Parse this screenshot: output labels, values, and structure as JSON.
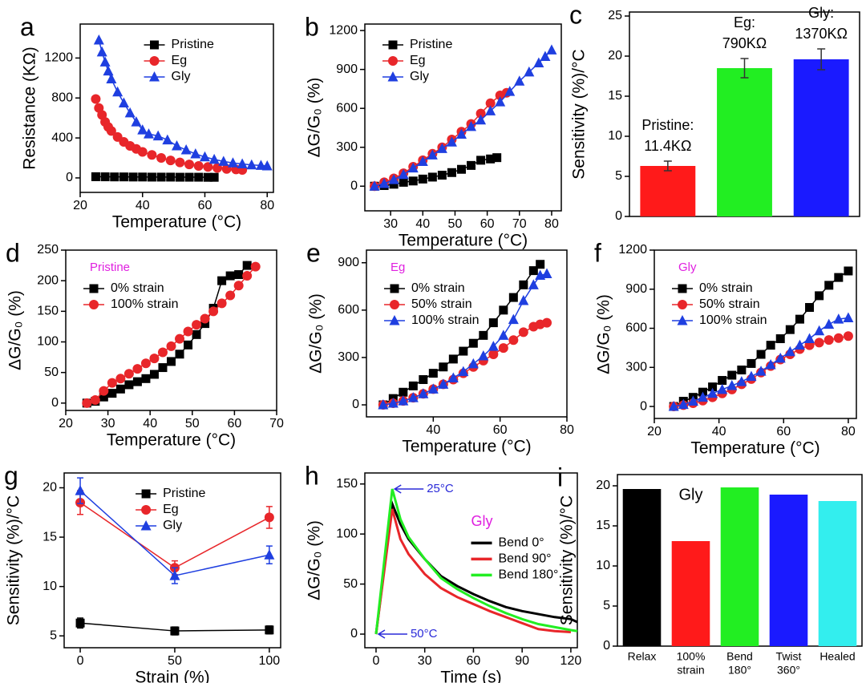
{
  "chart_data": [
    {
      "panel": "a",
      "type": "line",
      "x_label": "Temperature (°C)",
      "y_label": "Resistance (KΩ)",
      "xlim": [
        20,
        82
      ],
      "xticks": [
        20,
        40,
        60,
        80
      ],
      "ylim": [
        -145,
        1540
      ],
      "yticks": [
        0,
        400,
        800,
        1200
      ],
      "legend": "upper center",
      "series": [
        {
          "name": "Pristine",
          "color": "#000000",
          "marker": "square",
          "x": [
            25,
            28,
            31,
            34,
            37,
            40,
            43,
            46,
            49,
            52,
            55,
            58,
            61,
            63
          ],
          "values": [
            12,
            11,
            10,
            10,
            9,
            9,
            8,
            8,
            8,
            7,
            7,
            7,
            6,
            6
          ]
        },
        {
          "name": "Eg",
          "color": "#e8262a",
          "marker": "circle",
          "x": [
            25,
            26,
            27,
            28,
            29,
            30,
            32,
            34,
            36,
            38,
            40,
            43,
            46,
            49,
            52,
            55,
            58,
            61,
            64,
            67,
            70,
            72
          ],
          "values": [
            790,
            700,
            630,
            560,
            510,
            470,
            410,
            360,
            320,
            290,
            260,
            230,
            200,
            175,
            155,
            135,
            120,
            110,
            100,
            90,
            85,
            80
          ]
        },
        {
          "name": "Gly",
          "color": "#1f3fe0",
          "marker": "triangle",
          "x": [
            26,
            27,
            28,
            29,
            30,
            32,
            34,
            36,
            38,
            40,
            42,
            45,
            48,
            51,
            54,
            57,
            60,
            63,
            66,
            69,
            72,
            75,
            78,
            80
          ],
          "values": [
            1380,
            1260,
            1160,
            1070,
            990,
            860,
            750,
            650,
            560,
            480,
            440,
            420,
            380,
            320,
            280,
            240,
            210,
            185,
            165,
            150,
            140,
            130,
            125,
            120
          ]
        }
      ]
    },
    {
      "panel": "b",
      "type": "line",
      "x_label": "Temperature (°C)",
      "y_label": "ΔG/G₀ (%)",
      "xlim": [
        22,
        83
      ],
      "xticks": [
        30,
        40,
        50,
        60,
        70,
        80
      ],
      "ylim": [
        -190,
        1250
      ],
      "yticks": [
        0,
        300,
        600,
        900,
        1200
      ],
      "legend": "upper left",
      "series": [
        {
          "name": "Pristine",
          "color": "#000000",
          "marker": "square",
          "x": [
            25,
            28,
            31,
            34,
            37,
            40,
            43,
            46,
            49,
            52,
            55,
            58,
            61,
            63
          ],
          "values": [
            0,
            5,
            15,
            30,
            40,
            55,
            70,
            85,
            105,
            130,
            160,
            200,
            210,
            220
          ]
        },
        {
          "name": "Eg",
          "color": "#e8262a",
          "marker": "circle",
          "x": [
            25,
            28,
            31,
            34,
            37,
            40,
            43,
            46,
            49,
            52,
            55,
            58,
            61,
            64,
            66
          ],
          "values": [
            0,
            30,
            60,
            100,
            150,
            200,
            250,
            300,
            360,
            420,
            480,
            560,
            640,
            700,
            720
          ]
        },
        {
          "name": "Gly",
          "color": "#1f3fe0",
          "marker": "triangle",
          "x": [
            25,
            28,
            31,
            34,
            37,
            40,
            43,
            46,
            49,
            52,
            55,
            58,
            61,
            64,
            67,
            70,
            73,
            76,
            78,
            80
          ],
          "values": [
            0,
            20,
            50,
            90,
            140,
            190,
            240,
            290,
            340,
            400,
            460,
            510,
            580,
            650,
            730,
            810,
            880,
            950,
            1000,
            1050
          ]
        }
      ]
    },
    {
      "panel": "c",
      "type": "bar",
      "y_label": "Sensitivity (%)/°C",
      "ylim": [
        0,
        25.5
      ],
      "yticks": [
        0,
        5,
        10,
        15,
        20,
        25
      ],
      "values": [
        6.3,
        18.5,
        19.6
      ],
      "errors": [
        0.6,
        1.2,
        1.3
      ],
      "colors": [
        "#ff1a1a",
        "#22ee22",
        "#1a1aff"
      ],
      "bar_labels": [
        [
          "Pristine:",
          "11.4KΩ"
        ],
        [
          "Eg:",
          "790KΩ"
        ],
        [
          "Gly:",
          "1370KΩ"
        ]
      ]
    },
    {
      "panel": "d",
      "type": "line",
      "x_label": "Temperature (°C)",
      "y_label": "ΔG/G₀ (%)",
      "annotation": "Pristine",
      "annotation_color": "#e020e0",
      "xlim": [
        20,
        70
      ],
      "xticks": [
        20,
        30,
        40,
        50,
        60,
        70
      ],
      "ylim": [
        -12,
        250
      ],
      "yticks": [
        0,
        50,
        100,
        150,
        200,
        250
      ],
      "legend": "upper left",
      "series": [
        {
          "name": "0% strain",
          "color": "#000000",
          "marker": "square",
          "x": [
            25,
            27,
            29,
            31,
            33,
            35,
            37,
            39,
            41,
            43,
            45,
            47,
            49,
            51,
            53,
            55,
            57,
            59,
            61,
            63
          ],
          "values": [
            0,
            3,
            10,
            16,
            23,
            30,
            35,
            40,
            47,
            58,
            68,
            80,
            95,
            112,
            130,
            155,
            200,
            208,
            210,
            225
          ]
        },
        {
          "name": "100% strain",
          "color": "#e8262a",
          "marker": "circle",
          "x": [
            25,
            27,
            29,
            31,
            33,
            35,
            37,
            39,
            41,
            43,
            45,
            47,
            49,
            51,
            53,
            55,
            57,
            59,
            61,
            63,
            65
          ],
          "values": [
            0,
            5,
            20,
            33,
            40,
            48,
            56,
            65,
            73,
            83,
            93,
            105,
            117,
            128,
            138,
            150,
            163,
            176,
            192,
            208,
            223
          ]
        }
      ]
    },
    {
      "panel": "e",
      "type": "line",
      "x_label": "Temperature (°C)",
      "y_label": "ΔG/G₀ (%)",
      "annotation": "Eg",
      "annotation_color": "#e020e0",
      "xlim": [
        20,
        80
      ],
      "xticks": [
        40,
        60,
        80
      ],
      "ylim": [
        -76,
        980
      ],
      "yticks": [
        0,
        300,
        600,
        900
      ],
      "legend": "upper left",
      "series": [
        {
          "name": "0% strain",
          "color": "#000000",
          "marker": "square",
          "x": [
            25,
            28,
            31,
            34,
            37,
            40,
            43,
            46,
            49,
            52,
            55,
            58,
            61,
            64,
            67,
            70,
            72
          ],
          "values": [
            0,
            40,
            80,
            120,
            160,
            200,
            240,
            290,
            340,
            390,
            440,
            520,
            600,
            680,
            760,
            850,
            890
          ]
        },
        {
          "name": "50% strain",
          "color": "#e8262a",
          "marker": "circle",
          "x": [
            25,
            28,
            31,
            34,
            37,
            40,
            43,
            46,
            49,
            52,
            55,
            58,
            61,
            64,
            67,
            70,
            72,
            74
          ],
          "values": [
            0,
            10,
            25,
            45,
            70,
            100,
            130,
            160,
            200,
            240,
            280,
            320,
            360,
            410,
            460,
            495,
            510,
            520
          ]
        },
        {
          "name": "100% strain",
          "color": "#1f3fe0",
          "marker": "triangle",
          "x": [
            25,
            28,
            31,
            34,
            37,
            40,
            43,
            46,
            49,
            52,
            55,
            58,
            61,
            64,
            67,
            70,
            72,
            74
          ],
          "values": [
            0,
            10,
            25,
            45,
            70,
            100,
            130,
            170,
            210,
            260,
            310,
            370,
            440,
            540,
            660,
            760,
            820,
            830
          ]
        }
      ]
    },
    {
      "panel": "f",
      "type": "line",
      "x_label": "Temperature (°C)",
      "y_label": "ΔG/G₀ (%)",
      "annotation": "Gly",
      "annotation_color": "#e020e0",
      "xlim": [
        20,
        82.5
      ],
      "xticks": [
        20,
        40,
        60,
        80
      ],
      "ylim": [
        -92,
        1200
      ],
      "yticks": [
        0,
        300,
        600,
        900,
        1200
      ],
      "legend": "upper left",
      "series": [
        {
          "name": "0% strain",
          "color": "#000000",
          "marker": "square",
          "x": [
            26,
            29,
            32,
            35,
            38,
            41,
            44,
            47,
            50,
            53,
            56,
            59,
            62,
            65,
            68,
            71,
            74,
            77,
            80
          ],
          "values": [
            0,
            40,
            70,
            110,
            150,
            200,
            240,
            280,
            330,
            400,
            470,
            520,
            590,
            670,
            760,
            850,
            930,
            990,
            1040
          ]
        },
        {
          "name": "50% strain",
          "color": "#e8262a",
          "marker": "circle",
          "x": [
            26,
            29,
            32,
            35,
            38,
            41,
            44,
            47,
            50,
            53,
            56,
            59,
            62,
            65,
            68,
            71,
            74,
            77,
            80
          ],
          "values": [
            0,
            10,
            25,
            45,
            70,
            100,
            130,
            170,
            210,
            260,
            310,
            360,
            400,
            440,
            470,
            490,
            510,
            525,
            540
          ]
        },
        {
          "name": "100% strain",
          "color": "#1f3fe0",
          "marker": "triangle",
          "x": [
            26,
            29,
            32,
            35,
            38,
            41,
            44,
            47,
            50,
            53,
            56,
            59,
            62,
            65,
            68,
            71,
            74,
            77,
            80
          ],
          "values": [
            0,
            15,
            40,
            70,
            100,
            130,
            160,
            190,
            230,
            270,
            320,
            370,
            420,
            470,
            520,
            580,
            630,
            670,
            680
          ]
        }
      ]
    },
    {
      "panel": "g",
      "type": "line",
      "x_label": "Strain (%)",
      "y_label": "Sensitivity (%)/°C",
      "xlim": [
        -8.5,
        106
      ],
      "xticks": [
        0,
        50,
        100
      ],
      "ylim": [
        3.8,
        21.5
      ],
      "yticks": [
        5,
        10,
        15,
        20
      ],
      "legend": "upper center",
      "series": [
        {
          "name": "Pristine",
          "color": "#000000",
          "marker": "square",
          "x": [
            0,
            50,
            100
          ],
          "values": [
            6.3,
            5.5,
            5.6
          ],
          "errors": [
            0.5,
            0.4,
            0.4
          ]
        },
        {
          "name": "Eg",
          "color": "#e8262a",
          "marker": "circle",
          "x": [
            0,
            50,
            100
          ],
          "values": [
            18.5,
            11.9,
            17.0
          ],
          "errors": [
            1.2,
            0.7,
            1.1
          ]
        },
        {
          "name": "Gly",
          "color": "#1f3fe0",
          "marker": "triangle",
          "x": [
            0,
            50,
            100
          ],
          "values": [
            19.7,
            11.1,
            13.2
          ],
          "errors": [
            1.3,
            0.8,
            0.9
          ]
        }
      ]
    },
    {
      "panel": "h",
      "type": "line",
      "x_label": "Time (s)",
      "y_label": "ΔG/G₀ (%)",
      "annotation": "Gly",
      "annotation_color": "#e020e0",
      "arrow_labels": [
        "25°C",
        "50°C"
      ],
      "arrow_color": "#2a2ad8",
      "xlim": [
        -6.9,
        124
      ],
      "xticks": [
        0,
        30,
        60,
        90,
        120
      ],
      "ylim": [
        -13.6,
        161
      ],
      "yticks": [
        0,
        50,
        100,
        150
      ],
      "legend": "center right",
      "series": [
        {
          "name": "Bend 0°",
          "color": "#000000",
          "marker": "none",
          "x": [
            0,
            10,
            15,
            20,
            30,
            40,
            50,
            60,
            70,
            80,
            90,
            100,
            110,
            120,
            124
          ],
          "values": [
            0,
            130,
            110,
            95,
            75,
            58,
            48,
            40,
            33,
            27,
            23,
            20,
            17,
            15,
            12
          ]
        },
        {
          "name": "Bend 90°",
          "color": "#e8262a",
          "marker": "none",
          "x": [
            0,
            10,
            15,
            20,
            30,
            40,
            50,
            60,
            70,
            80,
            90,
            100,
            110,
            120
          ],
          "values": [
            0,
            125,
            95,
            80,
            60,
            46,
            37,
            30,
            23,
            17,
            11,
            5,
            3,
            2
          ]
        },
        {
          "name": "Bend 180°",
          "color": "#22ee22",
          "marker": "none",
          "x": [
            0,
            10,
            15,
            20,
            30,
            40,
            50,
            60,
            70,
            80,
            90,
            100,
            110,
            120,
            124
          ],
          "values": [
            0,
            145,
            115,
            97,
            75,
            56,
            45,
            36,
            28,
            21,
            15,
            10,
            7,
            4,
            3
          ]
        }
      ]
    },
    {
      "panel": "i",
      "type": "bar",
      "y_label": "Sensitivity (%)/°C",
      "annotation": "Gly",
      "annotation_color": "#000000",
      "ylim": [
        0,
        21.4
      ],
      "yticks": [
        0,
        5,
        10,
        15,
        20
      ],
      "categories": [
        [
          "Relax"
        ],
        [
          "100%",
          "strain"
        ],
        [
          "Bend",
          "180°"
        ],
        [
          "Twist",
          "360°"
        ],
        [
          "Healed"
        ]
      ],
      "values": [
        19.6,
        13.1,
        19.8,
        18.9,
        18.1
      ],
      "colors": [
        "#000000",
        "#ff1a1a",
        "#22ee22",
        "#1a1aff",
        "#33eeee"
      ]
    }
  ]
}
